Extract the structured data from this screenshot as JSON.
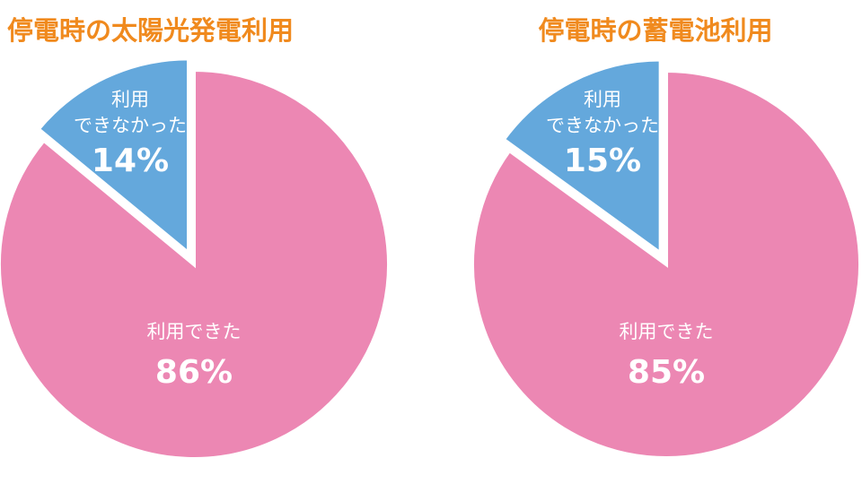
{
  "chart_data": [
    {
      "type": "pie",
      "title": "停電時の太陽光発電利用",
      "categories": [
        "利用できた",
        "利用\nできなかった"
      ],
      "values": [
        86,
        14
      ],
      "value_labels": [
        "86%",
        "14%"
      ],
      "colors": [
        "#ec87b3",
        "#64a8dc"
      ]
    },
    {
      "type": "pie",
      "title": "停電時の蓄電池利用",
      "categories": [
        "利用できた",
        "利用\nできなかった"
      ],
      "values": [
        85,
        15
      ],
      "value_labels": [
        "85%",
        "15%"
      ],
      "colors": [
        "#ec87b3",
        "#64a8dc"
      ]
    }
  ]
}
